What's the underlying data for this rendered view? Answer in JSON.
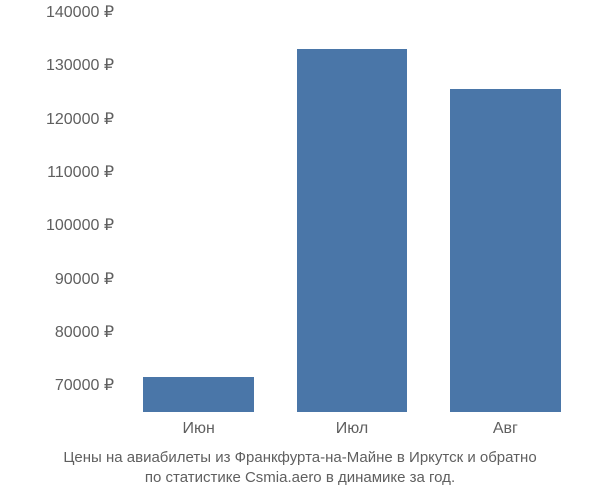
{
  "chart": {
    "type": "bar",
    "categories": [
      "Июн",
      "Июл",
      "Авг"
    ],
    "values": [
      71500,
      133000,
      125500
    ],
    "bar_color": "#4a76a8",
    "bar_width": 0.72,
    "ylim": [
      65000,
      140000
    ],
    "yticks": [
      70000,
      80000,
      90000,
      100000,
      110000,
      120000,
      130000,
      140000
    ],
    "ytick_labels": [
      "70000 ₽",
      "80000 ₽",
      "90000 ₽",
      "100000 ₽",
      "110000 ₽",
      "120000 ₽",
      "130000 ₽",
      "140000 ₽"
    ],
    "background_color": "#ffffff",
    "tick_label_color": "#5f5f5f",
    "caption_color": "#5f5f5f",
    "caption_line1": "Цены на авиабилеты из Франкфурта-на-Майне в Иркутск и обратно",
    "caption_line2": "по статистике Csmia.aero в динамике за год.",
    "title_fontsize": 15,
    "label_fontsize": 16
  }
}
